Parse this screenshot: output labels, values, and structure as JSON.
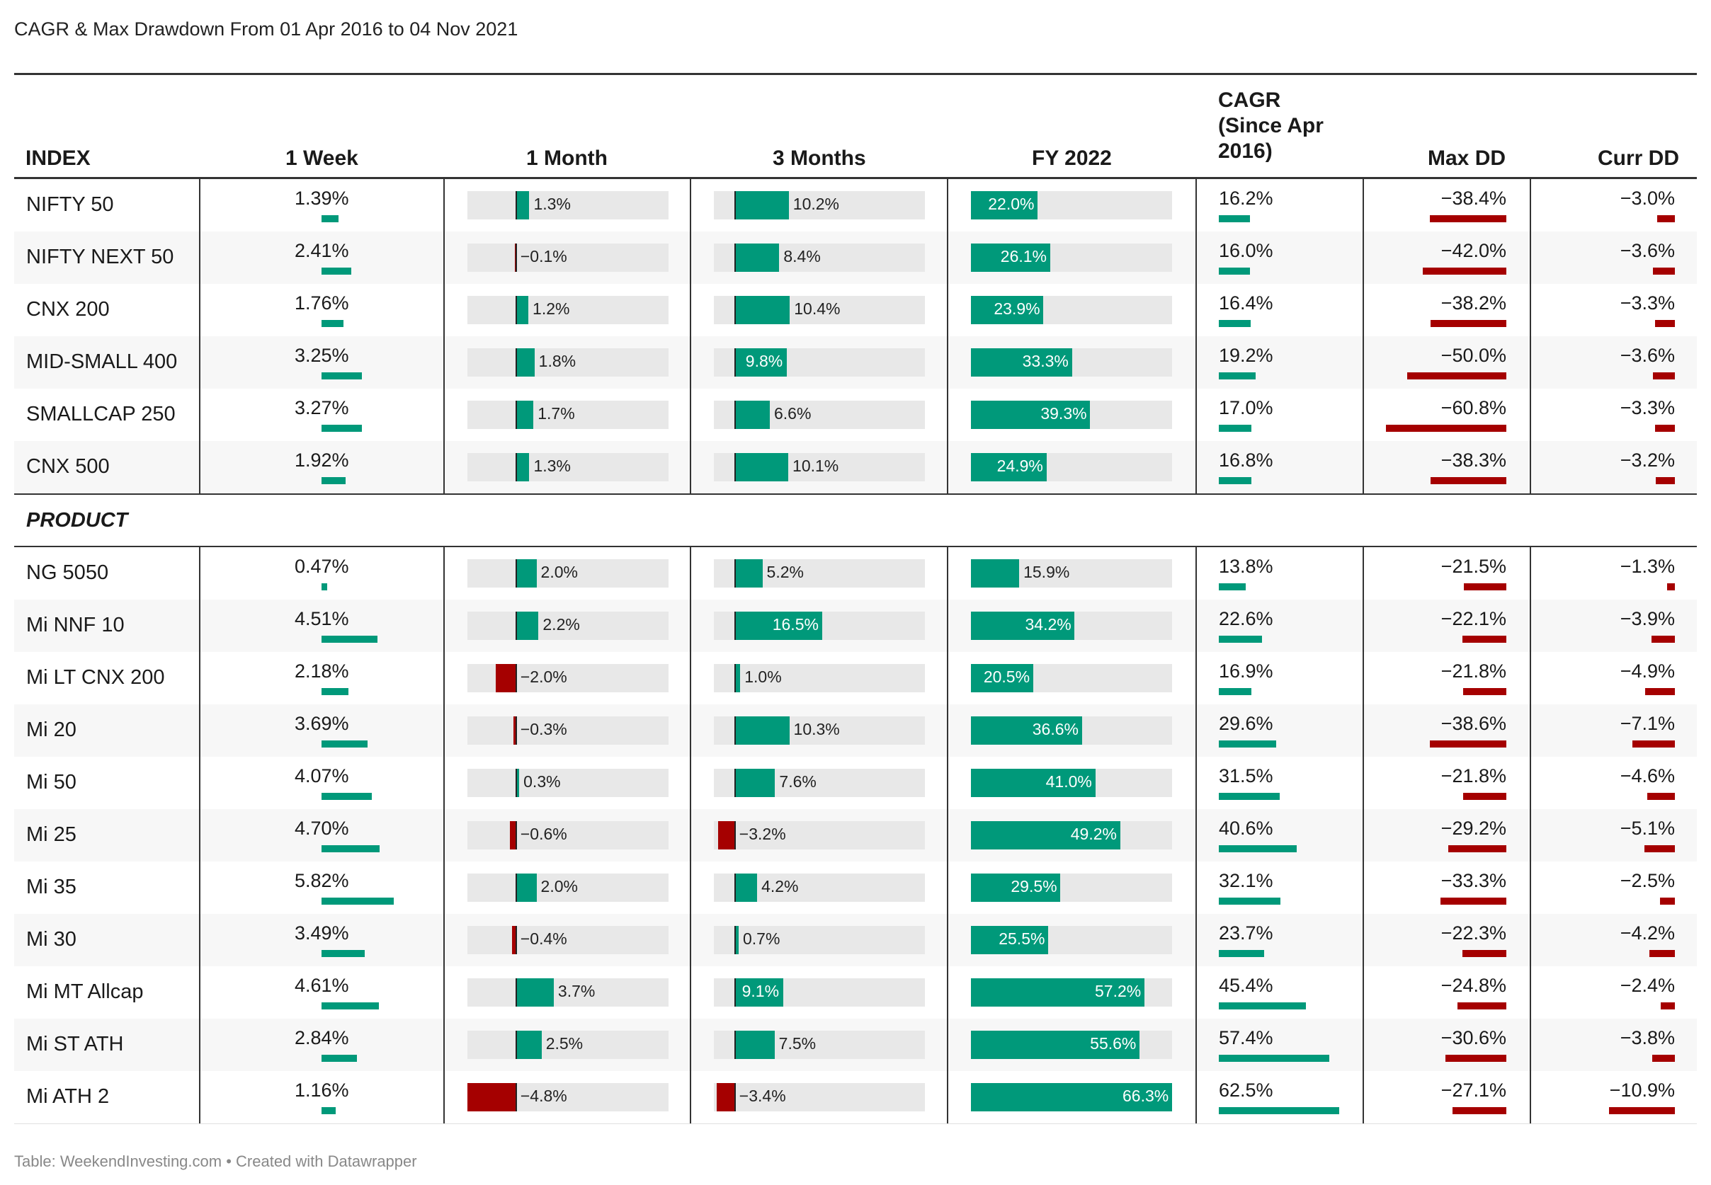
{
  "title": "CAGR & Max Drawdown From 01 Apr 2016 to 04 Nov 2021",
  "footer": "Table: WeekendInvesting.com • Created with Datawrapper",
  "colors": {
    "positive": "#00997a",
    "negative": "#a50000",
    "track": "#e8e8e8"
  },
  "chart_data": {
    "type": "table",
    "columns": [
      "INDEX",
      "1 Week",
      "1 Month",
      "3 Months",
      "FY 2022",
      "CAGR (Since Apr 2016)",
      "Max DD",
      "Curr DD"
    ],
    "section_label": "PRODUCT",
    "index_rows": [
      {
        "name": "NIFTY 50",
        "week": "1.39%",
        "month": "1.3%",
        "m3": "10.2%",
        "fy": "22.0%",
        "cagr": "16.2%",
        "maxdd": "−38.4%",
        "currdd": "−3.0%"
      },
      {
        "name": "NIFTY NEXT 50",
        "week": "2.41%",
        "month": "−0.1%",
        "m3": "8.4%",
        "fy": "26.1%",
        "cagr": "16.0%",
        "maxdd": "−42.0%",
        "currdd": "−3.6%"
      },
      {
        "name": "CNX 200",
        "week": "1.76%",
        "month": "1.2%",
        "m3": "10.4%",
        "fy": "23.9%",
        "cagr": "16.4%",
        "maxdd": "−38.2%",
        "currdd": "−3.3%"
      },
      {
        "name": "MID-SMALL 400",
        "week": "3.25%",
        "month": "1.8%",
        "m3": "9.8%",
        "fy": "33.3%",
        "cagr": "19.2%",
        "maxdd": "−50.0%",
        "currdd": "−3.6%"
      },
      {
        "name": "SMALLCAP 250",
        "week": "3.27%",
        "month": "1.7%",
        "m3": "6.6%",
        "fy": "39.3%",
        "cagr": "17.0%",
        "maxdd": "−60.8%",
        "currdd": "−3.3%"
      },
      {
        "name": "CNX 500",
        "week": "1.92%",
        "month": "1.3%",
        "m3": "10.1%",
        "fy": "24.9%",
        "cagr": "16.8%",
        "maxdd": "−38.3%",
        "currdd": "−3.2%"
      }
    ],
    "product_rows": [
      {
        "name": "NG 5050",
        "week": "0.47%",
        "month": "2.0%",
        "m3": "5.2%",
        "fy": "15.9%",
        "cagr": "13.8%",
        "maxdd": "−21.5%",
        "currdd": "−1.3%"
      },
      {
        "name": "Mi NNF 10",
        "week": "4.51%",
        "month": "2.2%",
        "m3": "16.5%",
        "fy": "34.2%",
        "cagr": "22.6%",
        "maxdd": "−22.1%",
        "currdd": "−3.9%"
      },
      {
        "name": "Mi LT CNX 200",
        "week": "2.18%",
        "month": "−2.0%",
        "m3": "1.0%",
        "fy": "20.5%",
        "cagr": "16.9%",
        "maxdd": "−21.8%",
        "currdd": "−4.9%"
      },
      {
        "name": "Mi 20",
        "week": "3.69%",
        "month": "−0.3%",
        "m3": "10.3%",
        "fy": "36.6%",
        "cagr": "29.6%",
        "maxdd": "−38.6%",
        "currdd": "−7.1%"
      },
      {
        "name": "Mi 50",
        "week": "4.07%",
        "month": "0.3%",
        "m3": "7.6%",
        "fy": "41.0%",
        "cagr": "31.5%",
        "maxdd": "−21.8%",
        "currdd": "−4.6%"
      },
      {
        "name": "Mi 25",
        "week": "4.70%",
        "month": "−0.6%",
        "m3": "−3.2%",
        "fy": "49.2%",
        "cagr": "40.6%",
        "maxdd": "−29.2%",
        "currdd": "−5.1%"
      },
      {
        "name": "Mi 35",
        "week": "5.82%",
        "month": "2.0%",
        "m3": "4.2%",
        "fy": "29.5%",
        "cagr": "32.1%",
        "maxdd": "−33.3%",
        "currdd": "−2.5%"
      },
      {
        "name": "Mi 30",
        "week": "3.49%",
        "month": "−0.4%",
        "m3": "0.7%",
        "fy": "25.5%",
        "cagr": "23.7%",
        "maxdd": "−22.3%",
        "currdd": "−4.2%"
      },
      {
        "name": "Mi MT Allcap",
        "week": "4.61%",
        "month": "3.7%",
        "m3": "9.1%",
        "fy": "57.2%",
        "cagr": "45.4%",
        "maxdd": "−24.8%",
        "currdd": "−2.4%"
      },
      {
        "name": "Mi ST ATH",
        "week": "2.84%",
        "month": "2.5%",
        "m3": "7.5%",
        "fy": "55.6%",
        "cagr": "57.4%",
        "maxdd": "−30.6%",
        "currdd": "−3.8%"
      },
      {
        "name": "Mi ATH 2",
        "week": "1.16%",
        "month": "−4.8%",
        "m3": "−3.4%",
        "fy": "66.3%",
        "cagr": "62.5%",
        "maxdd": "−27.1%",
        "currdd": "−10.9%"
      }
    ],
    "scales": {
      "month": {
        "min": -4.8,
        "max": 15
      },
      "m3": {
        "min": -4,
        "max": 36
      },
      "fy": {
        "min": 0,
        "max": 66.3
      }
    }
  }
}
